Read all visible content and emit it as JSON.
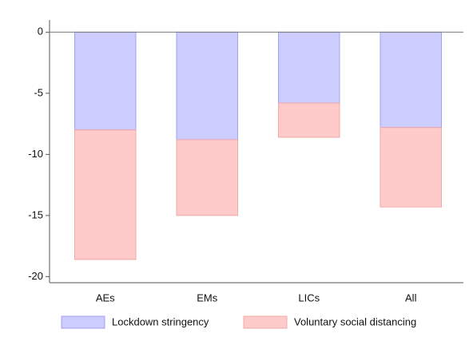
{
  "chart_data": {
    "type": "stacked-bar",
    "categories": [
      "AEs",
      "EMs",
      "LICs",
      "All"
    ],
    "series": [
      {
        "name": "Lockdown stringency",
        "color": "#ccccff",
        "values": [
          -8.0,
          -8.8,
          -5.8,
          -7.8
        ]
      },
      {
        "name": "Voluntary social distancing",
        "color": "#ffcaca",
        "values": [
          -10.6,
          -6.2,
          -2.8,
          -6.5
        ]
      }
    ],
    "ylim": [
      -20.5,
      1
    ],
    "yticks": [
      -20,
      -15,
      -10,
      -5,
      0
    ],
    "legend": "bottom"
  }
}
